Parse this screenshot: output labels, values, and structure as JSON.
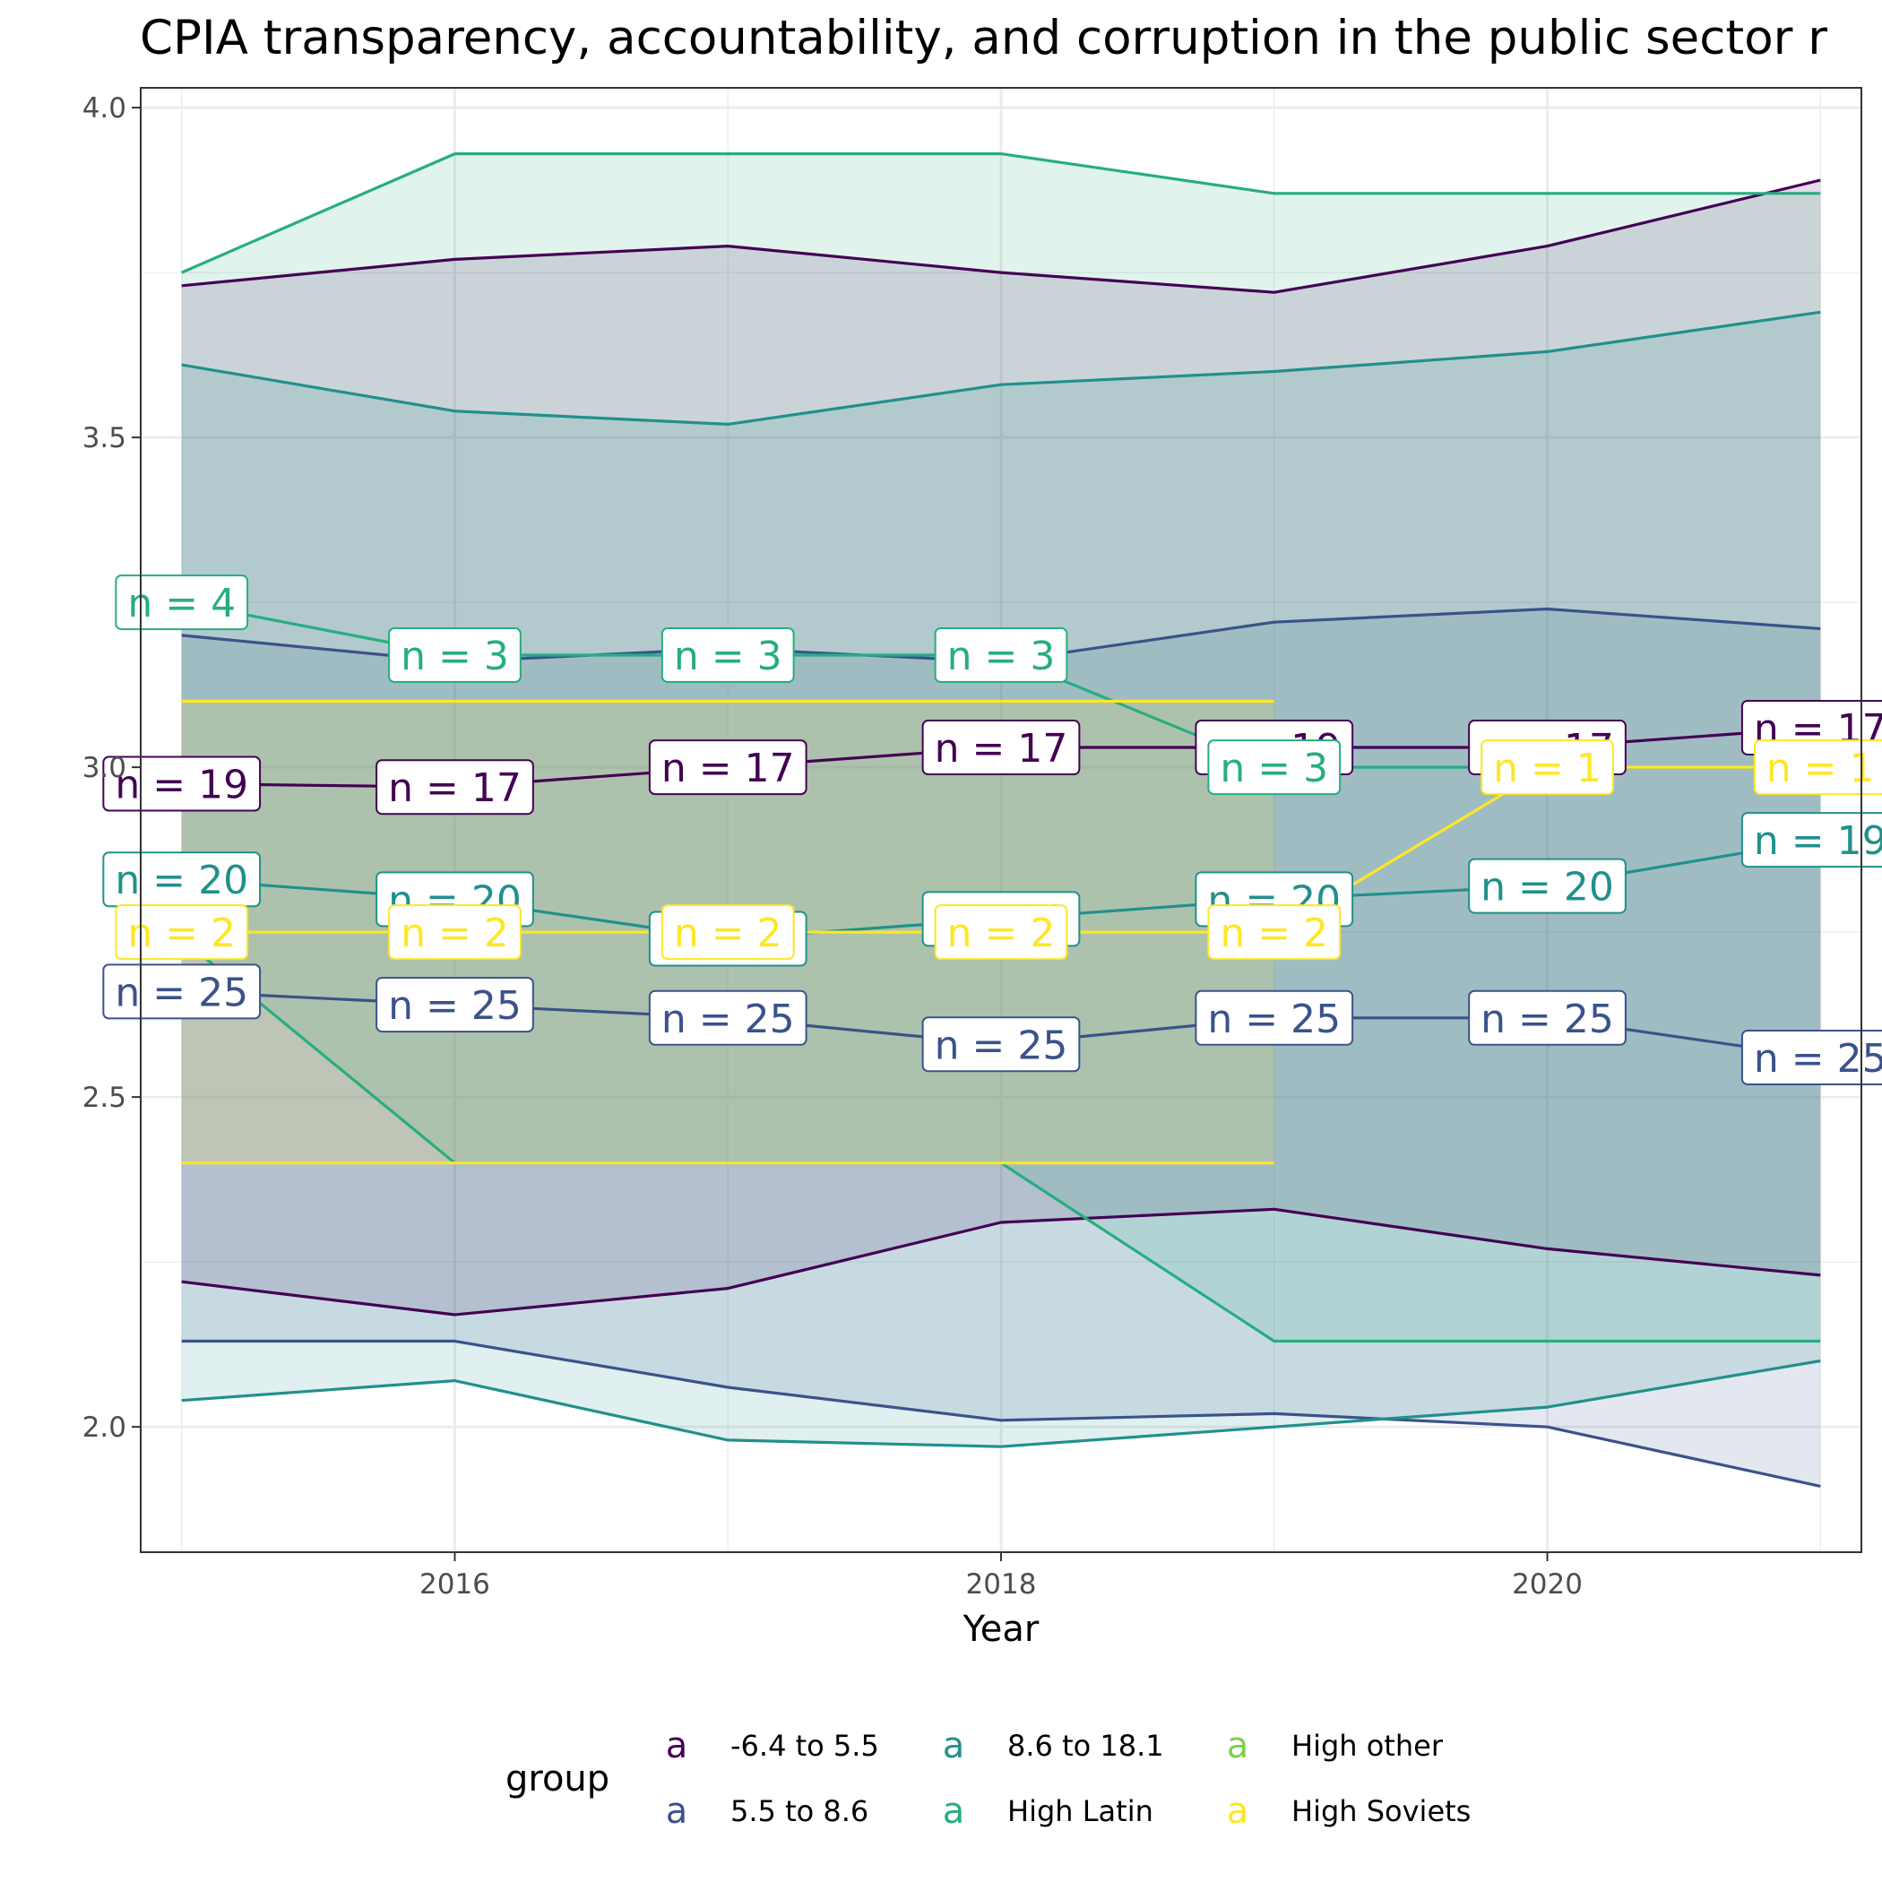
{
  "chart_data": {
    "type": "area",
    "title": "CPIA transparency, accountability, and corruption in the public sector r",
    "xlabel": "Year",
    "ylabel": "",
    "xlim": [
      2014.85,
      2021.15
    ],
    "ylim": [
      1.81,
      4.03
    ],
    "x_ticks": [
      "2016",
      "2018",
      "2020"
    ],
    "y_ticks": [
      "2.0",
      "2.5",
      "3.0",
      "3.5",
      "4.0"
    ],
    "grid": true,
    "legend_position": "bottom",
    "legend_title": "group",
    "legend_key_glyph": "a",
    "x": [
      2015,
      2016,
      2017,
      2018,
      2019,
      2020,
      2021
    ],
    "series": [
      {
        "name": "-6.4 to 5.5",
        "color": "#440154",
        "mean": [
          2.975,
          2.97,
          3.0,
          3.03,
          3.03,
          3.03,
          3.06
        ],
        "upper": [
          3.73,
          3.77,
          3.79,
          3.75,
          3.72,
          3.79,
          3.89
        ],
        "lower": [
          2.22,
          2.17,
          2.21,
          2.31,
          2.33,
          2.27,
          2.23
        ],
        "n": [
          "n = 19",
          "n = 17",
          "n = 17",
          "n = 17",
          "n = 19",
          "n = 17",
          "n = 17"
        ]
      },
      {
        "name": "5.5 to 8.6",
        "color": "#3B528B",
        "mean": [
          2.66,
          2.64,
          2.62,
          2.58,
          2.62,
          2.62,
          2.56
        ],
        "upper": [
          3.2,
          3.16,
          3.18,
          3.16,
          3.22,
          3.24,
          3.21
        ],
        "lower": [
          2.13,
          2.13,
          2.06,
          2.01,
          2.02,
          2.0,
          1.91
        ],
        "n": [
          "n = 25",
          "n = 25",
          "n = 25",
          "n = 25",
          "n = 25",
          "n = 25",
          "n = 25"
        ]
      },
      {
        "name": "8.6 to 18.1",
        "color": "#21908C",
        "mean": [
          2.83,
          2.8,
          2.74,
          2.77,
          2.8,
          2.82,
          2.89
        ],
        "upper": [
          3.61,
          3.54,
          3.52,
          3.58,
          3.6,
          3.63,
          3.69
        ],
        "lower": [
          2.04,
          2.07,
          1.98,
          1.97,
          2.0,
          2.03,
          2.1
        ],
        "n": [
          "n = 20",
          "n = 20",
          "n = 20",
          "n = 20",
          "n = 20",
          "n = 20",
          "n = 19"
        ]
      },
      {
        "name": "High Latin",
        "color": "#27AD81",
        "mean": [
          3.25,
          3.17,
          3.17,
          3.17,
          3.0,
          3.0,
          3.0
        ],
        "upper": [
          3.75,
          3.93,
          3.93,
          3.93,
          3.87,
          3.87,
          3.87
        ],
        "lower": [
          2.74,
          2.4,
          2.4,
          2.4,
          2.13,
          2.13,
          2.13
        ],
        "n": [
          "n = 4",
          "n = 3",
          "n = 3",
          "n = 3",
          "n = 3",
          null,
          null
        ]
      },
      {
        "name": "High other",
        "color": "#7AD151",
        "mean": [],
        "upper": [],
        "lower": [],
        "n": []
      },
      {
        "name": "High Soviets",
        "color": "#FDE725",
        "mean": [
          2.75,
          2.75,
          2.75,
          2.75,
          2.75,
          3.0,
          3.0
        ],
        "upper": [
          3.1,
          3.1,
          3.1,
          3.1,
          3.1,
          null,
          null
        ],
        "lower": [
          2.4,
          2.4,
          2.4,
          2.4,
          2.4,
          null,
          null
        ],
        "n": [
          "n = 2",
          "n = 2",
          "n = 2",
          "n = 2",
          "n = 2",
          "n = 1",
          "n = 1"
        ]
      }
    ]
  }
}
